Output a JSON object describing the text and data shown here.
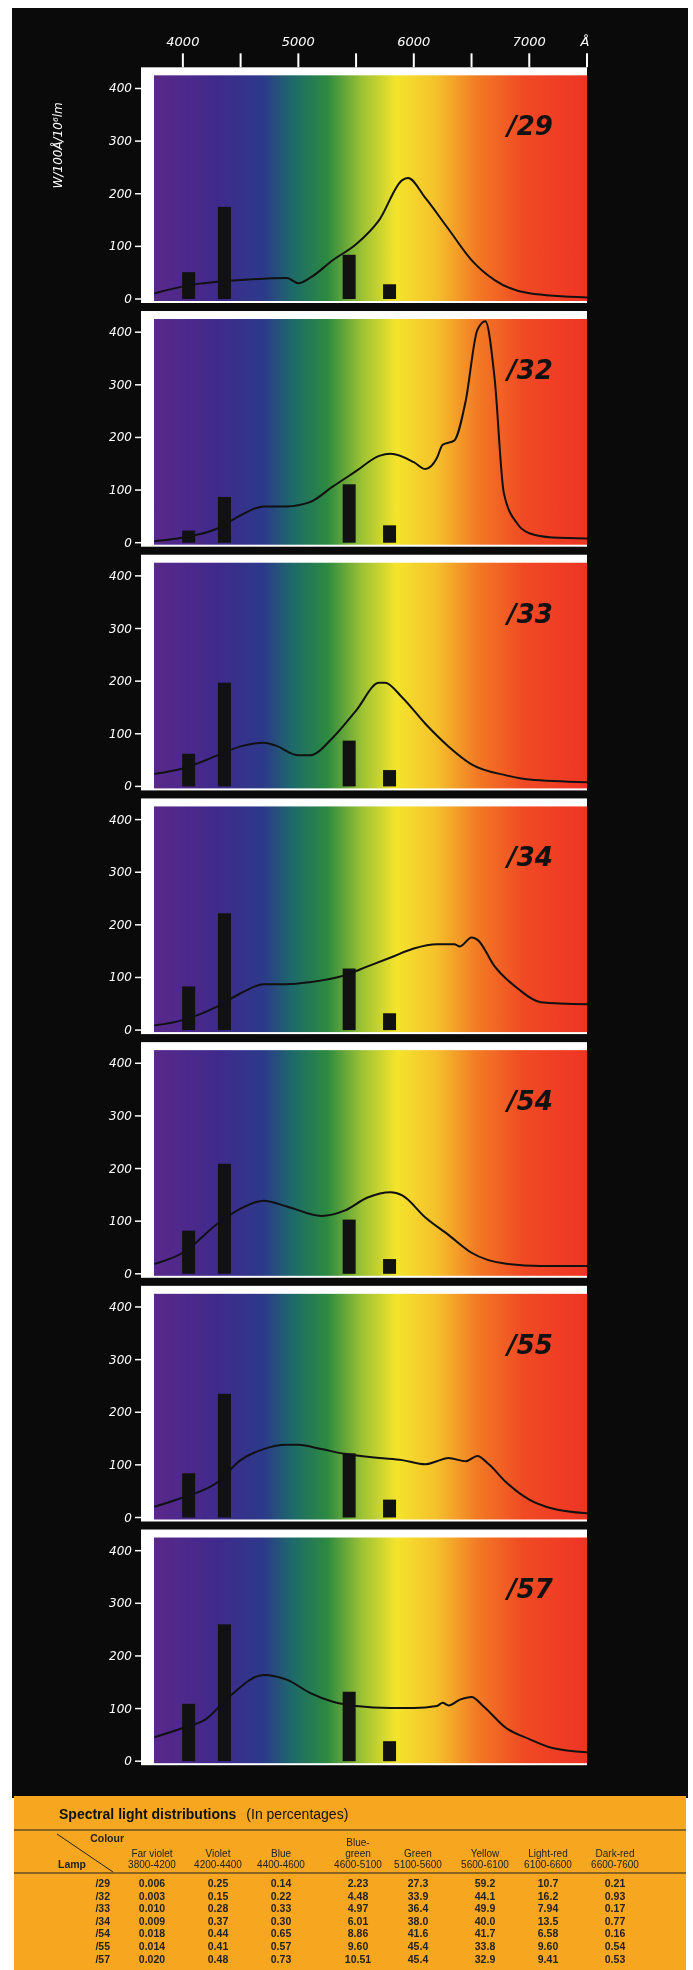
{
  "chart_data": [
    {
      "type": "line",
      "title": "/29",
      "ylabel": "W/100Å/10⁶lm",
      "xlabel": "Å",
      "xlim": [
        3750,
        7500
      ],
      "xticks": [
        4000,
        {
          "value": 4500,
          "label": null
        },
        5000,
        {
          "value": 5500,
          "label": null
        },
        6000,
        {
          "value": 6500,
          "label": null
        },
        7000,
        {
          "value": 7500,
          "label": null
        }
      ],
      "ylim": [
        0,
        425
      ],
      "yticks": [
        0,
        100,
        200,
        300,
        400
      ],
      "series": [
        {
          "type": "bar",
          "color": "#111111",
          "x": [
            4050,
            4360,
            5440,
            5790
          ],
          "values": [
            51,
            175,
            84,
            28
          ]
        },
        {
          "type": "line",
          "color": "#111111",
          "x": [
            3760,
            4000,
            4500,
            4900,
            5000,
            5100,
            5300,
            5500,
            5700,
            5900,
            5950,
            6100,
            6300,
            6500,
            6700,
            7000,
            7500
          ],
          "values": [
            11,
            24,
            36,
            40,
            30,
            40,
            74,
            104,
            150,
            226,
            230,
            192,
            133,
            74,
            36,
            11,
            3
          ]
        }
      ]
    },
    {
      "type": "line",
      "title": "/32",
      "xlim": [
        3750,
        7500
      ],
      "ylim": [
        0,
        425
      ],
      "yticks": [
        0,
        100,
        200,
        300,
        400
      ],
      "tick_labels": "y",
      "series": [
        {
          "type": "bar",
          "color": "#111111",
          "x": [
            4050,
            4360,
            5440,
            5790
          ],
          "values": [
            23,
            87,
            111,
            33
          ]
        },
        {
          "type": "line",
          "color": "#111111",
          "x": [
            3760,
            4000,
            4300,
            4500,
            4700,
            4900,
            5100,
            5300,
            5500,
            5700,
            5800,
            6000,
            6100,
            6200,
            6250,
            6350,
            6450,
            6550,
            6620,
            6700,
            6780,
            6900,
            7000,
            7200,
            7500
          ],
          "values": [
            3,
            10,
            27,
            52,
            69,
            69,
            77,
            107,
            136,
            165,
            169,
            153,
            140,
            161,
            186,
            194,
            270,
            404,
            421,
            312,
            94,
            35,
            18,
            10,
            8
          ]
        }
      ]
    },
    {
      "type": "line",
      "title": "/33",
      "xlim": [
        3750,
        7500
      ],
      "ylim": [
        0,
        425
      ],
      "yticks": [
        0,
        100,
        200,
        300,
        400
      ],
      "tick_labels": "y",
      "series": [
        {
          "type": "bar",
          "color": "#111111",
          "x": [
            4050,
            4360,
            5440,
            5790
          ],
          "values": [
            62,
            197,
            87,
            31
          ]
        },
        {
          "type": "line",
          "color": "#111111",
          "x": [
            3760,
            4000,
            4300,
            4500,
            4700,
            4800,
            5000,
            5100,
            5300,
            5500,
            5700,
            5750,
            5900,
            6100,
            6300,
            6500,
            6800,
            7000,
            7500
          ],
          "values": [
            24,
            34,
            59,
            76,
            83,
            78,
            59,
            59,
            93,
            144,
            197,
            197,
            169,
            119,
            76,
            42,
            21,
            13,
            8
          ]
        }
      ]
    },
    {
      "type": "line",
      "title": "/34",
      "xlim": [
        3750,
        7500
      ],
      "ylim": [
        0,
        425
      ],
      "yticks": [
        0,
        100,
        200,
        300,
        400
      ],
      "tick_labels": "y",
      "series": [
        {
          "type": "bar",
          "color": "#111111",
          "x": [
            4050,
            4360,
            5440,
            5790
          ],
          "values": [
            83,
            222,
            117,
            32
          ]
        },
        {
          "type": "line",
          "color": "#111111",
          "x": [
            3760,
            4000,
            4300,
            4500,
            4700,
            4900,
            5100,
            5400,
            5600,
            5800,
            6000,
            6200,
            6350,
            6400,
            6500,
            6550,
            6700,
            6900,
            7100,
            7500
          ],
          "values": [
            9,
            19,
            45,
            70,
            87,
            87,
            91,
            104,
            121,
            138,
            155,
            163,
            163,
            159,
            176,
            172,
            121,
            79,
            53,
            49
          ]
        }
      ]
    },
    {
      "type": "line",
      "title": "/54",
      "xlim": [
        3750,
        7500
      ],
      "ylim": [
        0,
        425
      ],
      "yticks": [
        0,
        100,
        200,
        300,
        400
      ],
      "tick_labels": "y",
      "series": [
        {
          "type": "bar",
          "color": "#111111",
          "x": [
            4050,
            4360,
            5440,
            5790
          ],
          "values": [
            82,
            209,
            103,
            28
          ]
        },
        {
          "type": "line",
          "color": "#111111",
          "x": [
            3760,
            4000,
            4300,
            4500,
            4700,
            4900,
            5200,
            5400,
            5600,
            5800,
            5900,
            6100,
            6300,
            6500,
            6800,
            7100,
            7500
          ],
          "values": [
            19,
            40,
            95,
            124,
            139,
            128,
            110,
            120,
            145,
            155,
            149,
            107,
            74,
            40,
            19,
            15,
            15
          ]
        }
      ]
    },
    {
      "type": "line",
      "title": "/55",
      "xlim": [
        3750,
        7500
      ],
      "ylim": [
        0,
        425
      ],
      "yticks": [
        0,
        100,
        200,
        300,
        400
      ],
      "tick_labels": "y",
      "series": [
        {
          "type": "bar",
          "color": "#111111",
          "x": [
            4050,
            4360,
            5440,
            5790
          ],
          "values": [
            84,
            235,
            122,
            34
          ]
        },
        {
          "type": "line",
          "color": "#111111",
          "x": [
            3760,
            4000,
            4300,
            4500,
            4700,
            4900,
            5000,
            5200,
            5400,
            5700,
            5900,
            6100,
            6200,
            6300,
            6450,
            6550,
            6650,
            6800,
            7000,
            7200,
            7500
          ],
          "values": [
            21,
            38,
            67,
            109,
            130,
            138,
            138,
            130,
            121,
            113,
            109,
            101,
            107,
            113,
            107,
            117,
            101,
            67,
            34,
            17,
            8
          ]
        }
      ]
    },
    {
      "type": "line",
      "title": "/57",
      "xlim": [
        3750,
        7500
      ],
      "ylim": [
        0,
        425
      ],
      "yticks": [
        0,
        100,
        200,
        300,
        400
      ],
      "tick_labels": "y",
      "series": [
        {
          "type": "bar",
          "color": "#111111",
          "x": [
            4050,
            4360,
            5440,
            5790
          ],
          "values": [
            109,
            260,
            132,
            38
          ]
        },
        {
          "type": "line",
          "color": "#111111",
          "x": [
            3760,
            4000,
            4200,
            4400,
            4700,
            4900,
            5100,
            5300,
            5500,
            5800,
            6000,
            6200,
            6250,
            6300,
            6400,
            6500,
            6600,
            6800,
            7000,
            7200,
            7500
          ],
          "values": [
            46,
            63,
            80,
            122,
            164,
            155,
            130,
            113,
            105,
            101,
            101,
            105,
            111,
            106,
            117,
            122,
            105,
            63,
            42,
            25,
            17
          ]
        }
      ]
    },
    {
      "type": "other",
      "title": "Spectral light distributions",
      "subtitle": "(In percentages)",
      "xlabel": "Colour",
      "ylabel": "Lamp",
      "categories": [
        "Far violet\n3800-4200",
        "Violet\n4200-4400",
        "Blue\n4400-4600",
        "Blue-\ngreen\n4600-5100",
        "Green\n5100-5600",
        "Yellow\n5600-6100",
        "Light-red\n6100-6600",
        "Dark-red\n6600-7600"
      ],
      "series": [
        {
          "name": "/29",
          "values": [
            0.006,
            0.25,
            0.14,
            2.23,
            27.3,
            59.2,
            10.7,
            0.21
          ],
          "value_labels": [
            "0.006",
            "0.25",
            "0.14",
            "2.23",
            "27.3",
            "59.2",
            "10.7",
            "0.21"
          ]
        },
        {
          "name": "/32",
          "values": [
            0.003,
            0.15,
            0.22,
            4.48,
            33.9,
            44.1,
            16.2,
            0.93
          ],
          "value_labels": [
            "0.003",
            "0.15",
            "0.22",
            "4.48",
            "33.9",
            "44.1",
            "16.2",
            "0.93"
          ]
        },
        {
          "name": "/33",
          "values": [
            0.01,
            0.28,
            0.33,
            4.97,
            36.4,
            49.9,
            7.94,
            0.17
          ],
          "value_labels": [
            "0.010",
            "0.28",
            "0.33",
            "4.97",
            "36.4",
            "49.9",
            "7.94",
            "0.17"
          ]
        },
        {
          "name": "/34",
          "values": [
            0.009,
            0.37,
            0.3,
            6.01,
            38.0,
            40.0,
            13.5,
            0.77
          ],
          "value_labels": [
            "0.009",
            "0.37",
            "0.30",
            "6.01",
            "38.0",
            "40.0",
            "13.5",
            "0.77"
          ]
        },
        {
          "name": "/54",
          "values": [
            0.018,
            0.44,
            0.65,
            8.86,
            41.6,
            41.7,
            6.58,
            0.16
          ],
          "value_labels": [
            "0.018",
            "0.44",
            "0.65",
            "8.86",
            "41.6",
            "41.7",
            "6.58",
            "0.16"
          ]
        },
        {
          "name": "/55",
          "values": [
            0.014,
            0.41,
            0.57,
            9.6,
            45.4,
            33.8,
            9.6,
            0.54
          ],
          "value_labels": [
            "0.014",
            "0.41",
            "0.57",
            "9.60",
            "45.4",
            "33.8",
            "9.60",
            "0.54"
          ]
        },
        {
          "name": "/57",
          "values": [
            0.02,
            0.48,
            0.73,
            10.51,
            45.4,
            32.9,
            9.41,
            0.53
          ],
          "value_labels": [
            "0.020",
            "0.48",
            "0.73",
            "10.51",
            "45.4",
            "32.9",
            "9.41",
            "0.53"
          ]
        }
      ]
    }
  ]
}
